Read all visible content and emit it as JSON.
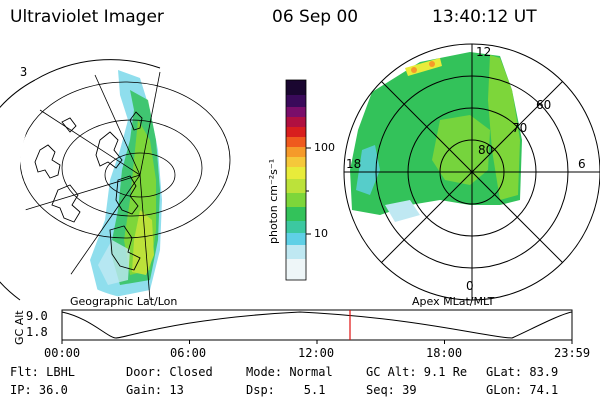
{
  "header": {
    "title": "Ultraviolet Imager",
    "date": "06 Sep 00",
    "time": "13:40:12 UT"
  },
  "left_panel": {
    "label": "Geographic Lat/Lon",
    "corner_glyph": "3"
  },
  "right_panel": {
    "label": "Apex MLat/MLT",
    "mlt_labels": {
      "top": "12",
      "left": "18",
      "right": "6",
      "bottom": "0"
    },
    "lat_labels": [
      "60",
      "70",
      "80"
    ]
  },
  "colorbar": {
    "unit_label": "photon cm⁻²s⁻¹",
    "ticks": [
      "100",
      "10"
    ],
    "colors_bottom_to_top": [
      "#ffffff",
      "#bfe8f2",
      "#5fd0e6",
      "#3cc8a0",
      "#33c25a",
      "#7dd63a",
      "#bce23a",
      "#e8ec3a",
      "#f5c83a",
      "#f59a2a",
      "#ef5a1e",
      "#d81e1e",
      "#b01040",
      "#7a0e6a",
      "#3a0a5a",
      "#1a0630"
    ]
  },
  "timeline": {
    "axis_label": "GC Alt",
    "y_ticks": [
      "9.0",
      "1.8"
    ],
    "x_ticks": [
      "00:00",
      "06:00",
      "12:00",
      "18:00",
      "23:59"
    ],
    "marker_time": "13:40"
  },
  "status": {
    "row1": {
      "flt": "Flt: LBHL",
      "door": "Door: Closed",
      "mode": "Mode: Normal",
      "gcalt": "GC Alt: 9.1 Re",
      "glat": "GLat: 83.9"
    },
    "row2": {
      "ip": "IP: 36.0",
      "gain": "Gain: 13",
      "dsp": "Dsp:    5.1",
      "seq": "Seq: 39",
      "glon": "GLon: 74.1"
    }
  }
}
